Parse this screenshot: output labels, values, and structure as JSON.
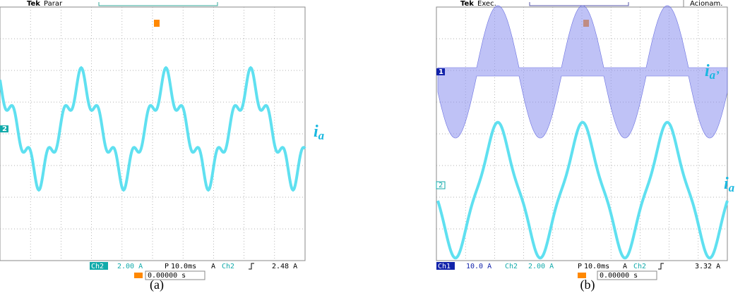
{
  "panel_a": {
    "brand": "Tek",
    "state": "Parar",
    "marker": "2",
    "status": {
      "ch": "Ch2",
      "scale": "2.00 A",
      "p": "P",
      "time": "10.0ms",
      "mode": "A",
      "trig_ch": "Ch2",
      "trig_level": "2.48 A"
    },
    "trigger_time": "0.00000 s",
    "caption": "(a)",
    "trace": {
      "main": "i",
      "sub": "a"
    }
  },
  "panel_b": {
    "brand": "Tek",
    "state": "Exec.",
    "action": "Acionam.",
    "markers": [
      "1",
      "2"
    ],
    "status": {
      "ch1": "Ch1",
      "scale1": "10.0 A",
      "ch": "Ch2",
      "scale": "2.00 A",
      "p": "P",
      "time": "10.0ms",
      "mode": "A",
      "trig_ch": "Ch2",
      "trig_level": "3.32 A"
    },
    "trigger_time": "0.00000 s",
    "caption": "(b)",
    "trace1": {
      "main": "i",
      "sub": "a’"
    },
    "trace2": {
      "main": "i",
      "sub": "a"
    }
  }
}
